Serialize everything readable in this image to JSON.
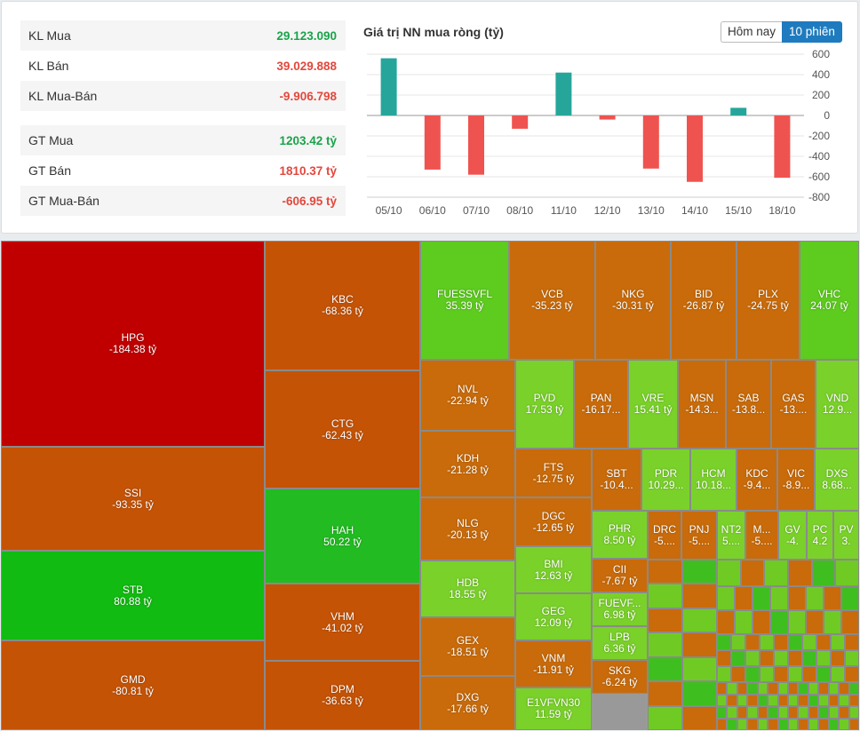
{
  "stats": {
    "kl_mua_label": "KL Mua",
    "kl_mua_value": "29.123.090",
    "kl_ban_label": "KL Bán",
    "kl_ban_value": "39.029.888",
    "kl_muaban_label": "KL Mua-Bán",
    "kl_muaban_value": "-9.906.798",
    "gt_mua_label": "GT Mua",
    "gt_mua_value": "1203.42 tỷ",
    "gt_ban_label": "GT Bán",
    "gt_ban_value": "1810.37 tỷ",
    "gt_muaban_label": "GT Mua-Bán",
    "gt_muaban_value": "-606.95 tỷ"
  },
  "toggle": {
    "today": "Hôm nay",
    "sessions": "10 phiên"
  },
  "colors": {
    "buy": "#1aa34a",
    "sell": "#e2483d",
    "bar_pos": "#26a69a",
    "bar_neg": "#ef5350"
  },
  "chart_data": {
    "type": "bar",
    "title": "Giá trị NN mua ròng (tỷ)",
    "categories": [
      "05/10",
      "06/10",
      "07/10",
      "08/10",
      "11/10",
      "12/10",
      "13/10",
      "14/10",
      "15/10",
      "18/10"
    ],
    "values": [
      560,
      -530,
      -580,
      -130,
      420,
      -40,
      -520,
      -650,
      75,
      -610
    ],
    "ylim": [
      -800,
      600
    ],
    "yticks": [
      600,
      400,
      200,
      0,
      -200,
      -400,
      -600,
      -800
    ],
    "grid": true
  },
  "treemap": [
    {
      "code": "HPG",
      "value": "-184.38 tỷ"
    },
    {
      "code": "SSI",
      "value": "-93.35 tỷ"
    },
    {
      "code": "STB",
      "value": "80.88 tỷ"
    },
    {
      "code": "GMD",
      "value": "-80.81 tỷ"
    },
    {
      "code": "KBC",
      "value": "-68.36 tỷ"
    },
    {
      "code": "CTG",
      "value": "-62.43 tỷ"
    },
    {
      "code": "HAH",
      "value": "50.22 tỷ"
    },
    {
      "code": "VHM",
      "value": "-41.02 tỷ"
    },
    {
      "code": "DPM",
      "value": "-36.63 tỷ"
    },
    {
      "code": "FUESSVFL",
      "value": "35.39 tỷ"
    },
    {
      "code": "VCB",
      "value": "-35.23 tỷ"
    },
    {
      "code": "NKG",
      "value": "-30.31 tỷ"
    },
    {
      "code": "BID",
      "value": "-26.87 tỷ"
    },
    {
      "code": "PLX",
      "value": "-24.75 tỷ"
    },
    {
      "code": "VHC",
      "value": "24.07 tỷ"
    },
    {
      "code": "NVL",
      "value": "-22.94 tỷ"
    },
    {
      "code": "KDH",
      "value": "-21.28 tỷ"
    },
    {
      "code": "NLG",
      "value": "-20.13 tỷ"
    },
    {
      "code": "HDB",
      "value": "18.55 tỷ"
    },
    {
      "code": "GEX",
      "value": "-18.51 tỷ"
    },
    {
      "code": "DXG",
      "value": "-17.66 tỷ"
    },
    {
      "code": "PVD",
      "value": "17.53 tỷ"
    },
    {
      "code": "PAN",
      "value": "-16.17..."
    },
    {
      "code": "VRE",
      "value": "15.41 tỷ"
    },
    {
      "code": "MSN",
      "value": "-14.3..."
    },
    {
      "code": "SAB",
      "value": "-13.8..."
    },
    {
      "code": "GAS",
      "value": "-13...."
    },
    {
      "code": "VND",
      "value": "12.9..."
    },
    {
      "code": "FTS",
      "value": "-12.75 tỷ"
    },
    {
      "code": "DGC",
      "value": "-12.65 tỷ"
    },
    {
      "code": "BMI",
      "value": "12.63 tỷ"
    },
    {
      "code": "GEG",
      "value": "12.09 tỷ"
    },
    {
      "code": "VNM",
      "value": "-11.91 tỷ"
    },
    {
      "code": "E1VFVN30",
      "value": "11.59 tỷ"
    },
    {
      "code": "SBT",
      "value": "-10.4..."
    },
    {
      "code": "PDR",
      "value": "10.29..."
    },
    {
      "code": "HCM",
      "value": "10.18..."
    },
    {
      "code": "KDC",
      "value": "-9.4..."
    },
    {
      "code": "VIC",
      "value": "-8.9..."
    },
    {
      "code": "DXS",
      "value": "8.68..."
    },
    {
      "code": "PHR",
      "value": "8.50 tỷ"
    },
    {
      "code": "CII",
      "value": "-7.67 tỷ"
    },
    {
      "code": "FUEVF...",
      "value": "6.98 tỷ"
    },
    {
      "code": "LPB",
      "value": "6.36 tỷ"
    },
    {
      "code": "SKG",
      "value": "-6.24 tỷ"
    },
    {
      "code": "DRC",
      "value": "-5...."
    },
    {
      "code": "PNJ",
      "value": "-5...."
    },
    {
      "code": "NT2",
      "value": "5...."
    },
    {
      "code": "M...",
      "value": "-5...."
    },
    {
      "code": "GV",
      "value": "-4."
    },
    {
      "code": "PC",
      "value": "4.2"
    },
    {
      "code": "PV",
      "value": "3."
    }
  ]
}
